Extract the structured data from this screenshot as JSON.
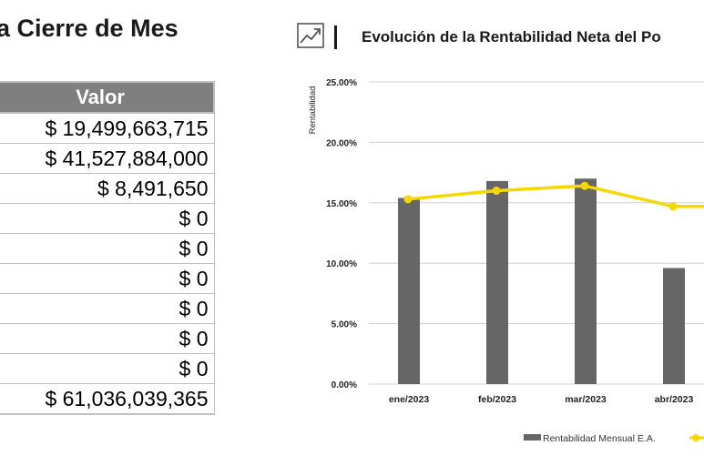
{
  "left_panel": {
    "title": "a Cierre de Mes",
    "table": {
      "header": "Valor",
      "rows": [
        "$ 19,499,663,715",
        "$ 41,527,884,000",
        "$ 8,491,650",
        "$ 0",
        "$ 0",
        "$ 0",
        "$ 0",
        "$ 0",
        "$ 0",
        "$ 61,036,039,365"
      ]
    }
  },
  "chart_panel": {
    "icon": "trending-up-chart-icon",
    "title": "Evolución de la Rentabilidad Neta del Po"
  },
  "chart_data": {
    "type": "bar",
    "title": "Evolución de la Rentabilidad Neta del Po",
    "ylabel": "Rentabilidad",
    "ylim": [
      0,
      25
    ],
    "yticks": [
      "0.00%",
      "5.00%",
      "10.00%",
      "15.00%",
      "20.00%",
      "25.00%"
    ],
    "categories": [
      "ene/2023",
      "feb/2023",
      "mar/2023",
      "abr/2023"
    ],
    "grid": true,
    "series": [
      {
        "name": "Rentabilidad Mensual E.A.",
        "kind": "bar",
        "color": "#666666",
        "values": [
          15.4,
          16.8,
          17.0,
          9.6
        ]
      },
      {
        "kind": "line",
        "color": "#f5d800",
        "values": [
          15.3,
          16.0,
          16.4,
          14.7
        ]
      }
    ],
    "legend": {
      "position": "bottom",
      "items": [
        "Rentabilidad Mensual E.A."
      ]
    }
  }
}
